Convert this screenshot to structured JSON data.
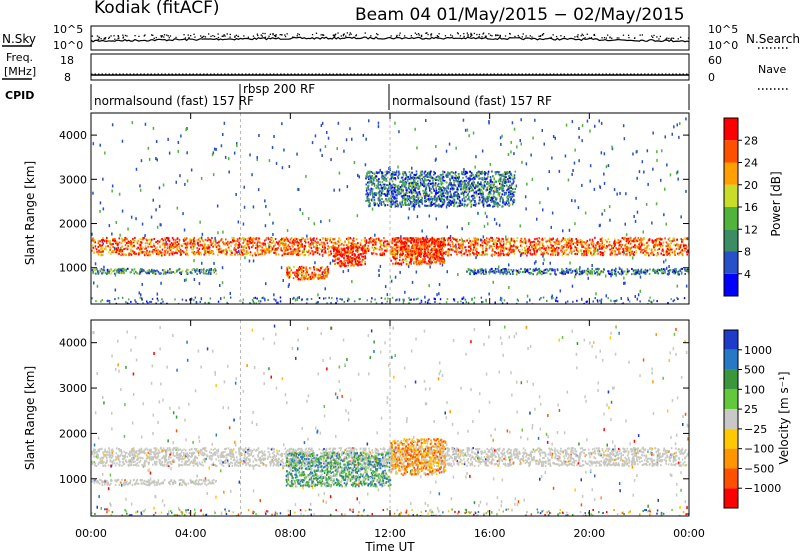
{
  "header": {
    "station": "Kodiak (fitACF)",
    "beam_dates": "Beam 04 01/May/2015 − 02/May/2015"
  },
  "strip_labels": {
    "nsky": "N.Sky",
    "nsearch": "N.Search",
    "freq_line1": "Freq.",
    "freq_line2": "[MHz]",
    "nave": "Nave",
    "cpid": "CPID"
  },
  "strip_ticks": {
    "noise_top": "10^5",
    "noise_bottom": "10^0",
    "freq_top": "18",
    "freq_bottom": "8",
    "nave_top": "60",
    "nave_bottom": "0"
  },
  "cpid_labels": [
    "normalsound (fast) 157 RF",
    "rbsp 200 RF",
    "normalsound (fast) 157 RF"
  ],
  "x_axis_label": "Time UT",
  "colors": {
    "power": [
      "#0000ff",
      "#2850c8",
      "#3c8c64",
      "#50b43c",
      "#c8dc28",
      "#ffa000",
      "#ff5000",
      "#ff0000"
    ],
    "velocity": [
      "#1e3cc8",
      "#2878c8",
      "#3c963c",
      "#64c83c",
      "#c8c8c8",
      "#ffc800",
      "#ff9600",
      "#ff5000",
      "#ff0000"
    ],
    "ground": "#c8c8c0"
  },
  "chart_data": [
    {
      "type": "heatmap",
      "title": "Power",
      "xlabel": "",
      "ylabel": "Slant Range [km]",
      "x_ticks": [
        "00:00",
        "04:00",
        "08:00",
        "12:00",
        "16:00",
        "20:00",
        "00:00"
      ],
      "x_range_hours": [
        0,
        24
      ],
      "y_ticks": [
        1000,
        2000,
        3000,
        4000
      ],
      "ylim": [
        180,
        4500
      ],
      "colorbar": {
        "label": "Power [dB]",
        "ticks": [
          "4",
          "8",
          "12",
          "16",
          "20",
          "24",
          "28"
        ],
        "range": [
          0,
          30
        ]
      },
      "features": [
        {
          "name": "main band",
          "start_h": 0,
          "end_h": 24,
          "range_km": [
            1300,
            1700
          ],
          "value_db": 24
        },
        {
          "name": "near band",
          "start_h": 0,
          "end_h": 5,
          "range_km": [
            880,
            1000
          ],
          "value_db": 10
        },
        {
          "name": "near band late",
          "start_h": 15,
          "end_h": 24,
          "range_km": [
            870,
            1000
          ],
          "value_db": 8
        },
        {
          "name": "morning echoes",
          "start_h": 7.8,
          "end_h": 9.5,
          "range_km": [
            750,
            1050
          ],
          "value_db": 24
        },
        {
          "name": "midday echoes",
          "start_h": 9.7,
          "end_h": 11,
          "range_km": [
            1050,
            1500
          ],
          "value_db": 28
        },
        {
          "name": "afternoon echoes",
          "start_h": 12,
          "end_h": 14.2,
          "range_km": [
            1100,
            1700
          ],
          "value_db": 26
        },
        {
          "name": "far scatter",
          "start_h": 11,
          "end_h": 17,
          "range_km": [
            2400,
            3200
          ],
          "value_db": 8
        }
      ]
    },
    {
      "type": "heatmap",
      "title": "Velocity",
      "xlabel": "Time UT",
      "ylabel": "Slant Range [km]",
      "x_ticks": [
        "00:00",
        "04:00",
        "08:00",
        "12:00",
        "16:00",
        "20:00",
        "00:00"
      ],
      "x_range_hours": [
        0,
        24
      ],
      "y_ticks": [
        1000,
        2000,
        3000,
        4000
      ],
      "ylim": [
        180,
        4500
      ],
      "colorbar": {
        "label": "Velocity [m s⁻¹]",
        "ticks": [
          "1000",
          "500",
          "100",
          "25",
          "−25",
          "−100",
          "−500",
          "−1000"
        ]
      },
      "features": [
        {
          "name": "ground scatter band",
          "start_h": 0,
          "end_h": 24,
          "range_km": [
            1300,
            1700
          ],
          "velocity": 0
        },
        {
          "name": "near ground scatter",
          "start_h": 0,
          "end_h": 5,
          "range_km": [
            880,
            1000
          ],
          "velocity": 0
        },
        {
          "name": "midday ionospheric",
          "start_h": 7.8,
          "end_h": 12,
          "range_km": [
            850,
            1600
          ],
          "velocity": 150
        },
        {
          "name": "afternoon ionospheric",
          "start_h": 12,
          "end_h": 14.2,
          "range_km": [
            1100,
            1900
          ],
          "velocity": -200
        }
      ]
    }
  ]
}
